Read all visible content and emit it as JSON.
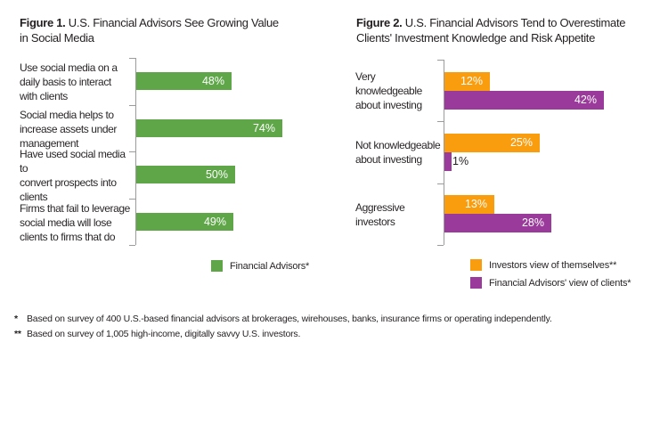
{
  "figure1": {
    "title": {
      "prefix": "Figure 1.",
      "title_rest": " U.S. Financial Advisors See Growing Value",
      "line2": "in Social Media"
    },
    "legend": [
      {
        "label": "Financial Advisors*",
        "color": "#5ea647"
      }
    ]
  },
  "figure2": {
    "title": {
      "prefix": "Figure 2.",
      "title_rest": " U.S. Financial Advisors Tend to Overestimate",
      "line2": "Clients' Investment Knowledge and Risk Appetite"
    },
    "legend": [
      {
        "label": "Investors view of themselves**",
        "color": "#f99d0f"
      },
      {
        "label": "Financial Advisors' view of clients*",
        "color": "#9a3a9a"
      }
    ]
  },
  "footnotes": [
    {
      "marker": "*",
      "text": "Based on survey of 400 U.S.-based financial advisors at brokerages, wirehouses, banks, insurance firms or operating independently."
    },
    {
      "marker": "**",
      "text": "Based on survey of 1,005 high-income, digitally savvy U.S. investors."
    }
  ],
  "colors": {
    "green": "#5ea647",
    "orange": "#f99d0f",
    "purple": "#9a3a9a",
    "axis_gray": "#9b9b9b",
    "text": "#231f20",
    "value_label_inside": "#ffffff"
  },
  "chart_data": [
    {
      "id": "fig1",
      "type": "bar",
      "orientation": "horizontal",
      "title": "Figure 1. U.S. Financial Advisors See Growing Value in Social Media",
      "categories": [
        [
          "Use social media on a",
          "daily basis to interact",
          "with clients"
        ],
        [
          "Social media helps to",
          "increase assets under",
          "management"
        ],
        [
          "Have used social media to",
          "convert prospects into",
          "clients"
        ],
        [
          "Firms that fail to leverage",
          "social media will lose",
          "clients to firms that do"
        ]
      ],
      "series": [
        {
          "id": "financial-advisors",
          "name": "Financial Advisors*",
          "color": "#5ea647",
          "values": [
            48,
            74,
            50,
            49
          ],
          "labels": [
            "48%",
            "74%",
            "50%",
            "49%"
          ]
        }
      ],
      "xlim": [
        0,
        100
      ],
      "unit": "%",
      "grid": false,
      "legend_position": "bottom-right"
    },
    {
      "id": "fig2",
      "type": "bar",
      "orientation": "horizontal",
      "title": "Figure 2. U.S. Financial Advisors Tend to Overestimate Clients' Investment Knowledge and Risk Appetite",
      "categories": [
        [
          "Very knowledgeable",
          "about investing"
        ],
        [
          "Not knowledgeable",
          "about investing"
        ],
        [
          "Aggressive",
          "investors"
        ]
      ],
      "series": [
        {
          "id": "investors-view",
          "name": "Investors view of themselves**",
          "color": "#f99d0f",
          "values": [
            12,
            25,
            13
          ],
          "labels": [
            "12%",
            "25%",
            "13%"
          ]
        },
        {
          "id": "advisors-view",
          "name": "Financial Advisors' view of clients*",
          "color": "#9a3a9a",
          "values": [
            42,
            1,
            28
          ],
          "labels": [
            "42%",
            "1%",
            "28%"
          ]
        }
      ],
      "xlim": [
        0,
        100
      ],
      "unit": "%",
      "grid": false,
      "legend_position": "bottom-right"
    }
  ]
}
